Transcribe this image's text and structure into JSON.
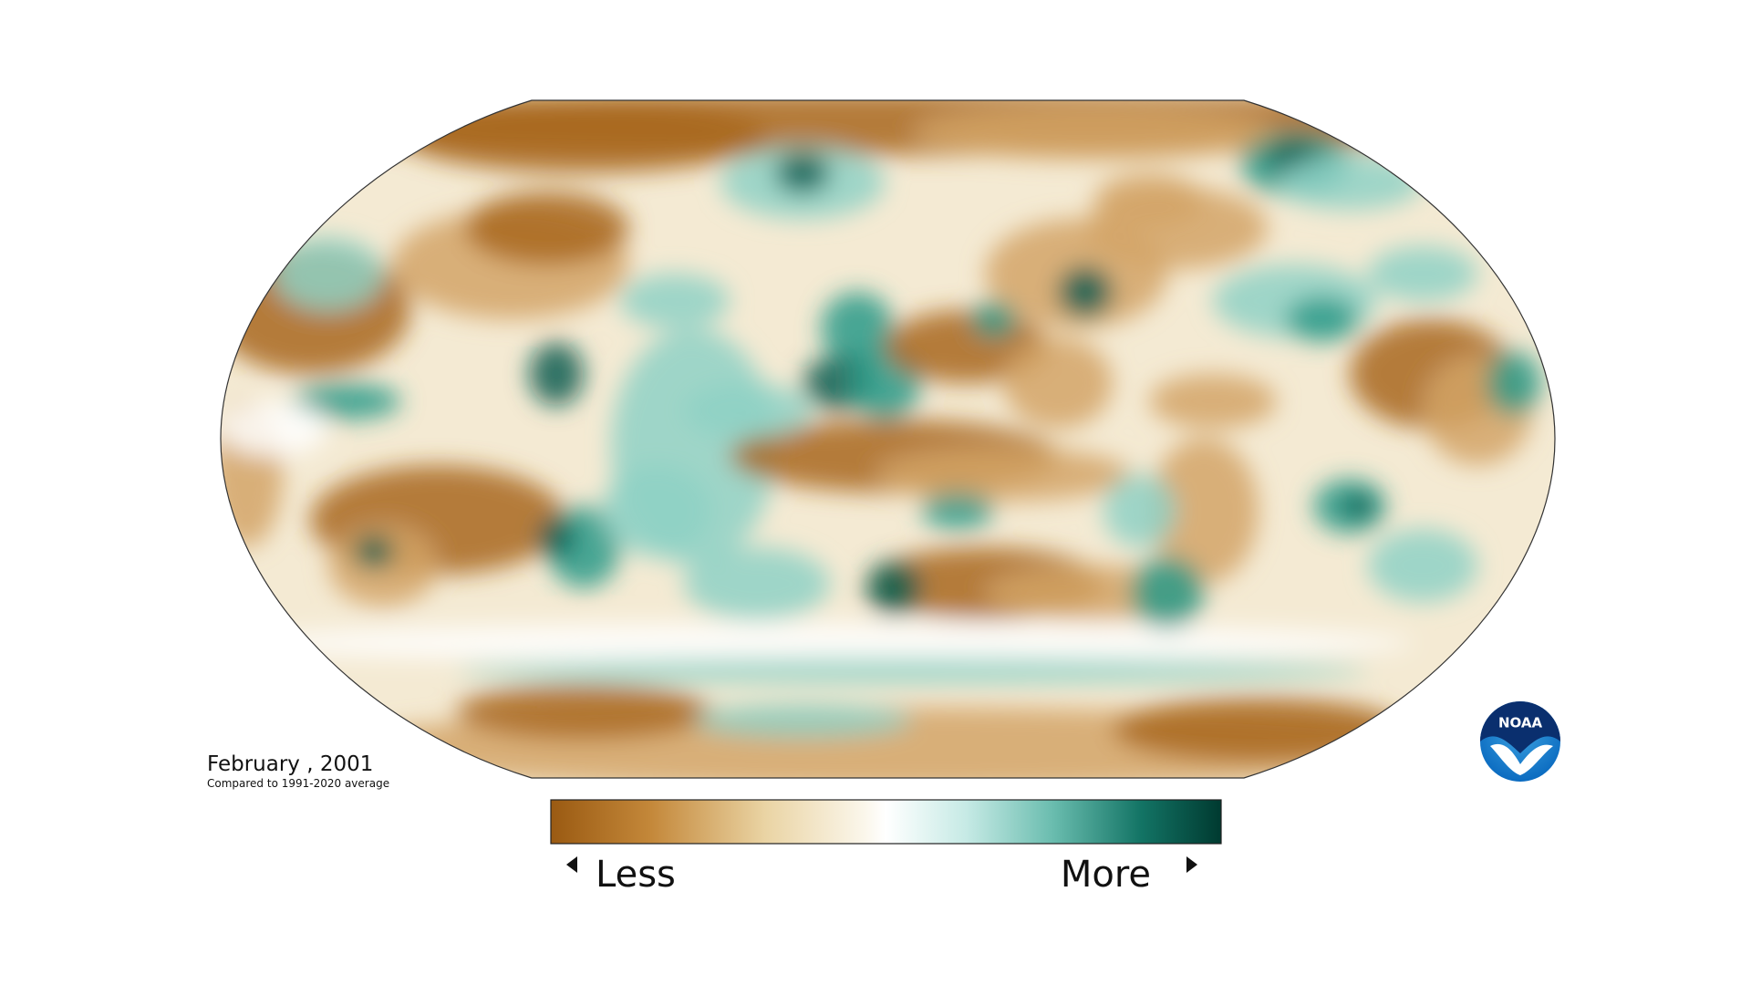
{
  "map": {
    "title": "February , 2001",
    "subtitle": "Compared to 1991-2020 average"
  },
  "legend": {
    "low_label": "Less",
    "high_label": "More"
  },
  "logo": {
    "text": "NOAA"
  }
}
